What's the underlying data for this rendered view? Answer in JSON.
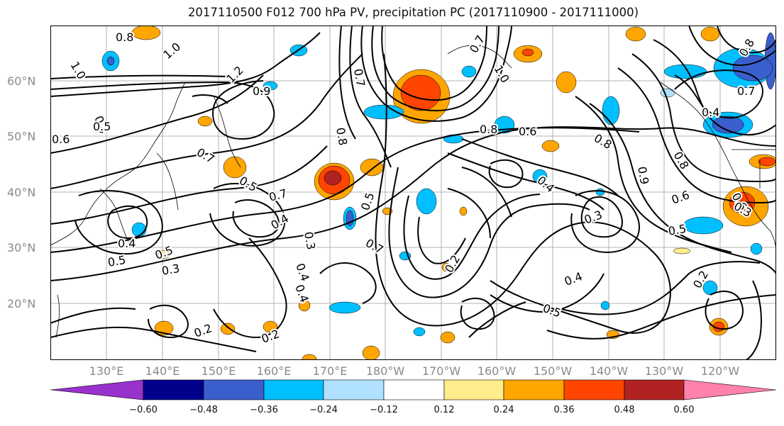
{
  "title": "2017110500 F012 700 hPa PV, precipitation PC (2017110900 - 2017111000)",
  "lat_labels": [
    "60°N",
    "50°N",
    "40°N",
    "30°N",
    "20°N"
  ],
  "lon_labels": [
    "130°E",
    "140°E",
    "150°E",
    "160°E",
    "170°E",
    "180°W",
    "170°W",
    "160°W",
    "150°W",
    "140°W",
    "130°W",
    "120°W"
  ],
  "colorbar": {
    "ticks": [
      "−0.60",
      "−0.48",
      "−0.36",
      "−0.24",
      "−0.12",
      "0.12",
      "0.24",
      "0.36",
      "0.48",
      "0.60"
    ],
    "colors": [
      "#9932cc",
      "#00008b",
      "#3a5fcd",
      "#00bfff",
      "#b0e2ff",
      "#ffffff",
      "#ffec8b",
      "#ffa500",
      "#ff4500",
      "#b22222",
      "#ff82ab"
    ]
  },
  "contour_labels": [
    "0.8",
    "1.0",
    "1.0",
    "1.2",
    "0.9",
    "0.4",
    "0.5",
    "0.6",
    "0.7",
    "0.5",
    "0.7",
    "0.4",
    "0.3",
    "0.5",
    "0.4",
    "0.5",
    "0.3",
    "0.4",
    "0.2",
    "0.2",
    "0.8",
    "0.7",
    "0.5",
    "0.7",
    "0.8",
    "0.6",
    "0.4",
    "0.4",
    "0.3",
    "0.2",
    "0.4",
    "0.5",
    "0.6",
    "0.5",
    "0.2",
    "0.8",
    "0.9",
    "0.7",
    "0.4",
    "0.6",
    "0.8",
    "1.0",
    "0.7",
    "0.3",
    "0.8"
  ]
}
